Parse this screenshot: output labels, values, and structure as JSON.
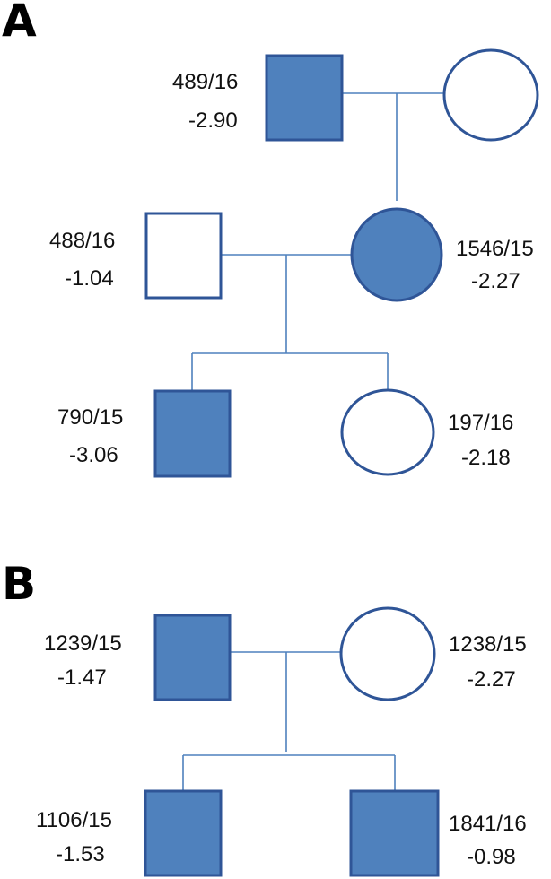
{
  "colors": {
    "affected_fill": "#4f81bd",
    "outline": "#2f5597",
    "unaffected_fill": "#ffffff",
    "line": "#4f81bd"
  },
  "panels": [
    {
      "letter": "A",
      "individuals": [
        {
          "key": "a1",
          "sex": "male",
          "affected": true,
          "id": "489/16",
          "value": "-2.90"
        },
        {
          "key": "a2",
          "sex": "female",
          "affected": false,
          "id": "",
          "value": ""
        },
        {
          "key": "a3",
          "sex": "male",
          "affected": false,
          "id": "488/16",
          "value": "-1.04"
        },
        {
          "key": "a4",
          "sex": "female",
          "affected": true,
          "id": "1546/15",
          "value": "-2.27"
        },
        {
          "key": "a5",
          "sex": "male",
          "affected": true,
          "id": "790/15",
          "value": "-3.06"
        },
        {
          "key": "a6",
          "sex": "female",
          "affected": false,
          "id": "197/16",
          "value": "-2.18"
        }
      ]
    },
    {
      "letter": "B",
      "individuals": [
        {
          "key": "b1",
          "sex": "male",
          "affected": true,
          "id": "1239/15",
          "value": "-1.47"
        },
        {
          "key": "b2",
          "sex": "female",
          "affected": false,
          "id": "1238/15",
          "value": "-2.27"
        },
        {
          "key": "b3",
          "sex": "male",
          "affected": true,
          "id": "1106/15",
          "value": "-1.53"
        },
        {
          "key": "b4",
          "sex": "male",
          "affected": true,
          "id": "1841/16",
          "value": "-0.98"
        }
      ]
    }
  ]
}
